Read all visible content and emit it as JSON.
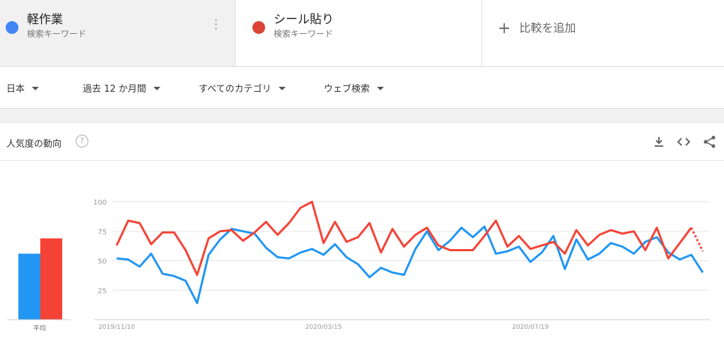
{
  "terms": [
    {
      "name": "軽作業",
      "type": "検索キーワード",
      "color": "#4285f4"
    },
    {
      "name": "シール貼り",
      "type": "検索キーワード",
      "color": "#db4437"
    }
  ],
  "add_compare": {
    "label": "比較を追加"
  },
  "filters": {
    "region": "日本",
    "period": "過去 12 か月間",
    "category": "すべてのカテゴリ",
    "search_type": "ウェブ検索"
  },
  "card": {
    "title": "人気度の動向",
    "help_icon": "help-icon",
    "download_icon": "download-icon",
    "embed_icon": "embed-code-icon",
    "share_icon": "share-icon"
  },
  "chart_data": {
    "type": "line",
    "yticks": [
      25,
      50,
      75,
      100
    ],
    "ylim": [
      0,
      100
    ],
    "xtick_labels": [
      "2019/11/10",
      "2020/03/15",
      "2020/07/19"
    ],
    "xtick_index": [
      0,
      18,
      36
    ],
    "average_label": "平均",
    "averages": [
      {
        "name": "軽作業",
        "value": 56,
        "color": "#2196f3"
      },
      {
        "name": "シール貼り",
        "value": 69,
        "color": "#f44336"
      }
    ],
    "series": [
      {
        "name": "軽作業",
        "color": "#2196f3",
        "values": [
          52,
          51,
          45,
          56,
          39,
          37,
          33,
          14,
          55,
          68,
          77,
          75,
          73,
          61,
          53,
          52,
          57,
          60,
          55,
          64,
          53,
          47,
          36,
          44,
          40,
          38,
          60,
          75,
          59,
          67,
          78,
          70,
          79,
          56,
          58,
          62,
          49,
          57,
          71,
          43,
          68,
          51,
          56,
          65,
          62,
          56,
          66,
          70,
          57,
          51,
          55,
          40
        ],
        "partial_last": false
      },
      {
        "name": "シール貼り",
        "color": "#f44336",
        "values": [
          63,
          84,
          82,
          64,
          74,
          74,
          59,
          38,
          69,
          75,
          76,
          67,
          74,
          83,
          72,
          82,
          95,
          100,
          65,
          83,
          66,
          70,
          82,
          57,
          77,
          62,
          72,
          78,
          63,
          59,
          59,
          59,
          71,
          84,
          62,
          71,
          60,
          63,
          66,
          56,
          76,
          63,
          72,
          76,
          73,
          75,
          59,
          78,
          52,
          65,
          78,
          58
        ],
        "partial_last": true
      }
    ]
  }
}
